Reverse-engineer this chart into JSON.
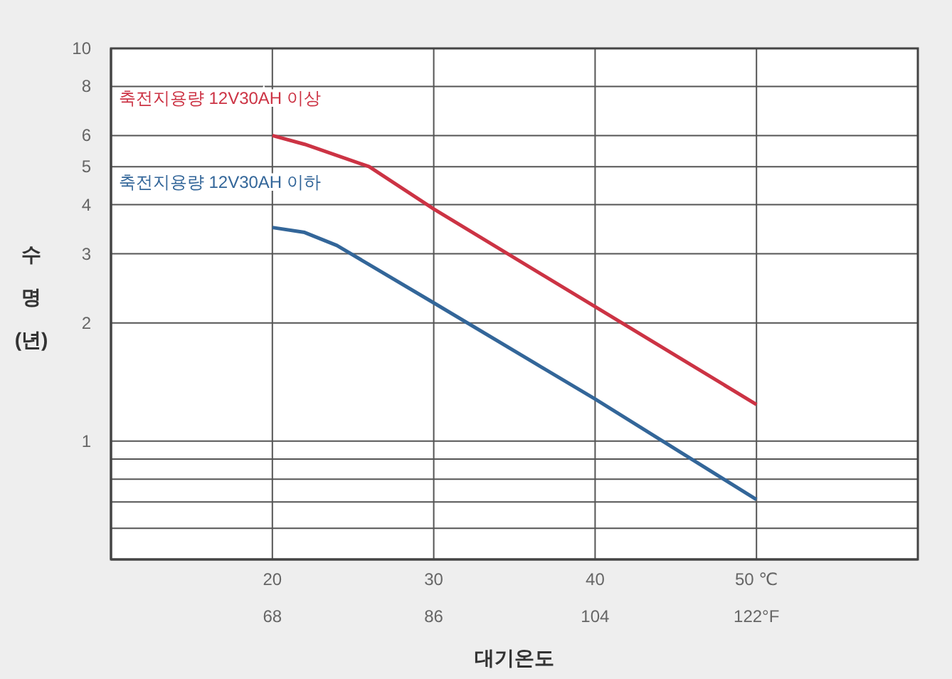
{
  "chart_data": {
    "type": "line",
    "xlabel": "대기온도",
    "ylabel": "수\n명\n(년)",
    "xlim": [
      10,
      60
    ],
    "xticks": [
      20,
      30,
      40,
      {
        "value": 50,
        "label": "50 ℃"
      }
    ],
    "x2lim": [
      50,
      140
    ],
    "x2ticks": [
      68,
      86,
      104,
      {
        "value": 122,
        "label": "122°F"
      }
    ],
    "ylim": [
      0.5,
      10
    ],
    "yticks": [
      {
        "value": 0.6,
        "label": null
      },
      {
        "value": 0.7,
        "label": null
      },
      {
        "value": 0.8,
        "label": null
      },
      {
        "value": 0.9,
        "label": null
      },
      1,
      2,
      3,
      4,
      5,
      6,
      8,
      10
    ],
    "log": "y",
    "grid": true,
    "marker": "none",
    "series": [
      {
        "name": "축전지용량 12V30AH 이상",
        "color": "#cc3344",
        "x": [
          20,
          22,
          26,
          30,
          40,
          50
        ],
        "values": [
          6.0,
          5.7,
          5.0,
          3.9,
          2.2,
          1.24
        ]
      },
      {
        "name": "축전지용량 12V30AH 이하",
        "color": "#336699",
        "x": [
          20,
          22,
          24,
          30,
          40,
          50
        ],
        "values": [
          3.5,
          3.4,
          3.15,
          2.25,
          1.28,
          0.71
        ]
      }
    ]
  }
}
